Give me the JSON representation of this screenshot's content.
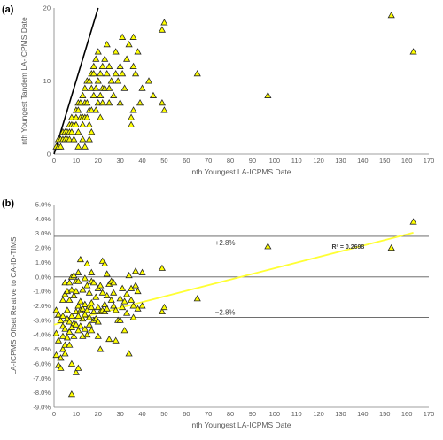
{
  "colors": {
    "marker_fill": "#ffff00",
    "marker_stroke": "#262626",
    "trend": "#ffff33",
    "axis": "#7f7f7f",
    "gridline": "#d9d9d9"
  },
  "chart_data": [
    {
      "type": "scatter",
      "panel_label": "(a)",
      "xlabel": "nth Youngest LA-ICPMS Date",
      "ylabel": "nth Youngest Tandem LA-ICPMS Date",
      "xlim": [
        0,
        170
      ],
      "ylim": [
        0,
        20
      ],
      "x_ticks": [
        0,
        10,
        20,
        30,
        40,
        50,
        60,
        70,
        80,
        90,
        100,
        110,
        120,
        130,
        140,
        150,
        160,
        170
      ],
      "y_ticks": [
        0,
        10,
        20
      ],
      "grid": false,
      "reference_line": {
        "label": "",
        "points": [
          [
            0,
            0
          ],
          [
            20,
            20
          ]
        ]
      },
      "points": [
        [
          1,
          1
        ],
        [
          2,
          1
        ],
        [
          2,
          2
        ],
        [
          3,
          1
        ],
        [
          3,
          2
        ],
        [
          4,
          2
        ],
        [
          4,
          3
        ],
        [
          5,
          2
        ],
        [
          5,
          3
        ],
        [
          6,
          2
        ],
        [
          6,
          3
        ],
        [
          7,
          2
        ],
        [
          7,
          3
        ],
        [
          7,
          4
        ],
        [
          8,
          3
        ],
        [
          8,
          4
        ],
        [
          8,
          5
        ],
        [
          9,
          4
        ],
        [
          9,
          2
        ],
        [
          10,
          4
        ],
        [
          10,
          5
        ],
        [
          10,
          6
        ],
        [
          11,
          6
        ],
        [
          11,
          7
        ],
        [
          11,
          1
        ],
        [
          11,
          3
        ],
        [
          12,
          5
        ],
        [
          12,
          7
        ],
        [
          13,
          4
        ],
        [
          13,
          5
        ],
        [
          13,
          8
        ],
        [
          13,
          2
        ],
        [
          14,
          5
        ],
        [
          14,
          7
        ],
        [
          14,
          9
        ],
        [
          14,
          1
        ],
        [
          15,
          5
        ],
        [
          15,
          7
        ],
        [
          15,
          10
        ],
        [
          16,
          4
        ],
        [
          16,
          6
        ],
        [
          16,
          10
        ],
        [
          16,
          2
        ],
        [
          17,
          6
        ],
        [
          17,
          9
        ],
        [
          17,
          11
        ],
        [
          17,
          3
        ],
        [
          18,
          8
        ],
        [
          18,
          11
        ],
        [
          18,
          12
        ],
        [
          19,
          6
        ],
        [
          19,
          9
        ],
        [
          19,
          13
        ],
        [
          20,
          7
        ],
        [
          20,
          10
        ],
        [
          20,
          14
        ],
        [
          21,
          8
        ],
        [
          21,
          11
        ],
        [
          21,
          5
        ],
        [
          22,
          7
        ],
        [
          22,
          9
        ],
        [
          22,
          12
        ],
        [
          23,
          9
        ],
        [
          23,
          13
        ],
        [
          24,
          11
        ],
        [
          24,
          15
        ],
        [
          25,
          9
        ],
        [
          25,
          12
        ],
        [
          25,
          7
        ],
        [
          26,
          10
        ],
        [
          27,
          8
        ],
        [
          28,
          11
        ],
        [
          28,
          14
        ],
        [
          29,
          10
        ],
        [
          30,
          7
        ],
        [
          30,
          12
        ],
        [
          31,
          11
        ],
        [
          31,
          16
        ],
        [
          32,
          9
        ],
        [
          33,
          13
        ],
        [
          34,
          15
        ],
        [
          35,
          4
        ],
        [
          35,
          5
        ],
        [
          36,
          6
        ],
        [
          36,
          12
        ],
        [
          36,
          16
        ],
        [
          37,
          11
        ],
        [
          38,
          14
        ],
        [
          39,
          7
        ],
        [
          40,
          9
        ],
        [
          43,
          10
        ],
        [
          45,
          8
        ],
        [
          49,
          17
        ],
        [
          49,
          7
        ],
        [
          50,
          18
        ],
        [
          50,
          6
        ],
        [
          65,
          11
        ],
        [
          97,
          8
        ],
        [
          153,
          19
        ],
        [
          163,
          14
        ]
      ]
    },
    {
      "type": "scatter",
      "panel_label": "(b)",
      "xlabel": "nth Youngest LA-ICPMS Date",
      "ylabel": "LA-ICPMS Offset Relative to CA-ID-TIMS",
      "xlim": [
        0,
        170
      ],
      "ylim": [
        -9,
        5
      ],
      "x_ticks": [
        0,
        10,
        20,
        30,
        40,
        50,
        60,
        70,
        80,
        90,
        100,
        110,
        120,
        130,
        140,
        150,
        160,
        170
      ],
      "y_ticks": [
        -9,
        -8,
        -7,
        -6,
        -5,
        -4,
        -3,
        -2,
        -1,
        0,
        1,
        2,
        3,
        4,
        5
      ],
      "y_tick_labels": [
        "-9.0%",
        "-8.0%",
        "-7.0%",
        "-6.0%",
        "-5.0%",
        "-4.0%",
        "-3.0%",
        "-2.0%",
        "-1.0%",
        "0.0%",
        "1.0%",
        "2.0%",
        "3.0%",
        "4.0%",
        "5.0%"
      ],
      "grid": false,
      "reference_lines": [
        {
          "y": 2.8,
          "label": "+2.8%"
        },
        {
          "y": 0,
          "label": ""
        },
        {
          "y": -2.8,
          "label": "−2.8%"
        }
      ],
      "trendline": {
        "label": "R² = 0.2698",
        "x0": 0,
        "y0": -3.3,
        "x1": 163,
        "y1": 3.05
      },
      "points": [
        [
          1,
          -2.3
        ],
        [
          1,
          -3.9
        ],
        [
          1,
          -5.4
        ],
        [
          2,
          -2.6
        ],
        [
          2,
          -4.4
        ],
        [
          2,
          -6.1
        ],
        [
          3,
          -3.0
        ],
        [
          3,
          -5.6
        ],
        [
          3,
          -6.3
        ],
        [
          4,
          -1.6
        ],
        [
          4,
          -2.7
        ],
        [
          4,
          -3.4
        ],
        [
          4,
          -4.1
        ],
        [
          4,
          -5.0
        ],
        [
          5,
          -1.2
        ],
        [
          5,
          -0.4
        ],
        [
          5,
          -3.6
        ],
        [
          5,
          -4.7
        ],
        [
          5,
          -5.3
        ],
        [
          6,
          -1.0
        ],
        [
          6,
          -2.3
        ],
        [
          6,
          -2.9
        ],
        [
          6,
          -4.2
        ],
        [
          7,
          -0.4
        ],
        [
          7,
          -1.6
        ],
        [
          7,
          -3.1
        ],
        [
          7,
          -3.8
        ],
        [
          7,
          -4.7
        ],
        [
          8,
          0.0
        ],
        [
          8,
          -0.9
        ],
        [
          8,
          -2.7
        ],
        [
          8,
          -3.5
        ],
        [
          8,
          -6.0
        ],
        [
          8,
          -8.1
        ],
        [
          9,
          0.1
        ],
        [
          9,
          -1.3
        ],
        [
          9,
          -3.2
        ],
        [
          9,
          -4.1
        ],
        [
          10,
          -0.3
        ],
        [
          10,
          -1.0
        ],
        [
          10,
          -2.4
        ],
        [
          10,
          -3.3
        ],
        [
          10,
          -6.6
        ],
        [
          11,
          0.3
        ],
        [
          11,
          -0.3
        ],
        [
          11,
          -2.0
        ],
        [
          11,
          -2.7
        ],
        [
          11,
          -3.7
        ],
        [
          11,
          -6.3
        ],
        [
          12,
          1.2
        ],
        [
          12,
          -1.7
        ],
        [
          12,
          -2.3
        ],
        [
          12,
          -3.4
        ],
        [
          13,
          -0.9
        ],
        [
          13,
          -2.2
        ],
        [
          13,
          -2.9
        ],
        [
          13,
          -4.1
        ],
        [
          14,
          -0.1
        ],
        [
          14,
          -1.9
        ],
        [
          14,
          -2.6
        ],
        [
          14,
          -3.6
        ],
        [
          15,
          0.9
        ],
        [
          15,
          -0.6
        ],
        [
          15,
          -2.3
        ],
        [
          15,
          -4.0
        ],
        [
          16,
          -1.1
        ],
        [
          16,
          -2.0
        ],
        [
          16,
          -2.8
        ],
        [
          16,
          -3.3
        ],
        [
          17,
          0.3
        ],
        [
          17,
          -0.3
        ],
        [
          17,
          -2.1
        ],
        [
          17,
          -3.7
        ],
        [
          17,
          -1.8
        ],
        [
          18,
          -0.4
        ],
        [
          18,
          -2.4
        ],
        [
          18,
          -3.0
        ],
        [
          19,
          -1.4
        ],
        [
          19,
          -2.9
        ],
        [
          20,
          -0.8
        ],
        [
          20,
          -2.1
        ],
        [
          20,
          -3.1
        ],
        [
          20,
          -4.1
        ],
        [
          21,
          -0.6
        ],
        [
          21,
          -2.4
        ],
        [
          21,
          -5.0
        ],
        [
          22,
          1.1
        ],
        [
          22,
          -1.1
        ],
        [
          22,
          -2.3
        ],
        [
          23,
          0.9
        ],
        [
          23,
          -1.9
        ],
        [
          23,
          -2.4
        ],
        [
          24,
          0.2
        ],
        [
          24,
          -1.3
        ],
        [
          24,
          -2.2
        ],
        [
          25,
          -0.5
        ],
        [
          25,
          -4.3
        ],
        [
          26,
          -0.3
        ],
        [
          26,
          -1.6
        ],
        [
          27,
          -0.4
        ],
        [
          27,
          -1.1
        ],
        [
          27,
          -2.0
        ],
        [
          28,
          -2.3
        ],
        [
          28,
          -4.4
        ],
        [
          29,
          -3.0
        ],
        [
          30,
          -1.5
        ],
        [
          30,
          -3.0
        ],
        [
          31,
          -0.8
        ],
        [
          31,
          -2.1
        ],
        [
          32,
          -1.7
        ],
        [
          32,
          -3.7
        ],
        [
          33,
          -1.2
        ],
        [
          33,
          -2.5
        ],
        [
          34,
          0.1
        ],
        [
          34,
          -5.3
        ],
        [
          35,
          -0.8
        ],
        [
          35,
          -1.6
        ],
        [
          36,
          -2.0
        ],
        [
          36,
          -2.8
        ],
        [
          37,
          0.4
        ],
        [
          37,
          -0.6
        ],
        [
          38,
          -1.0
        ],
        [
          38,
          -2.2
        ],
        [
          40,
          0.3
        ],
        [
          40,
          -2.0
        ],
        [
          49,
          0.6
        ],
        [
          49,
          -2.4
        ],
        [
          50,
          -2.1
        ],
        [
          65,
          -1.5
        ],
        [
          97,
          2.1
        ],
        [
          153,
          2.0
        ],
        [
          163,
          3.8
        ]
      ]
    }
  ]
}
